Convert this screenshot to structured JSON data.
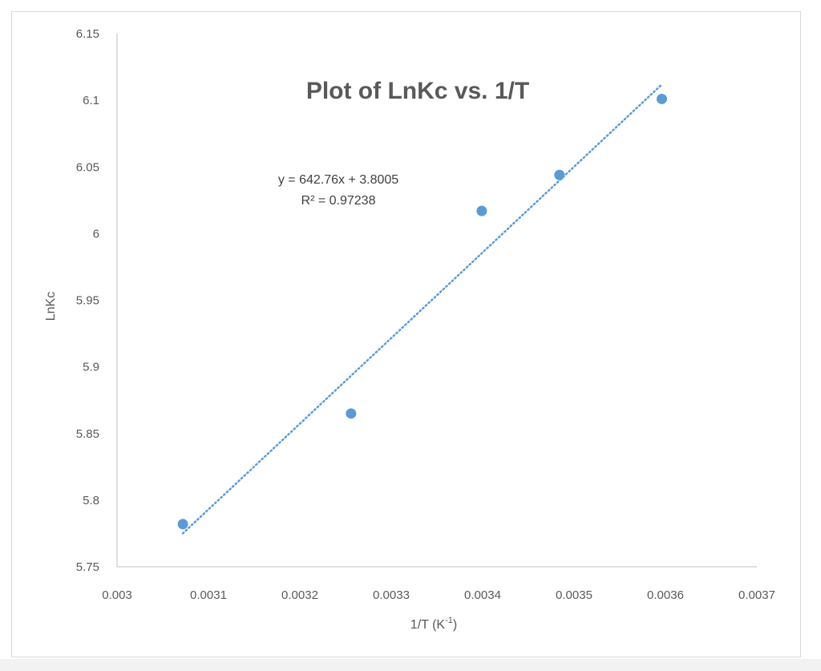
{
  "chart_data": {
    "type": "scatter",
    "title": "Plot of LnKc vs. 1/T",
    "xlabel": "1/T (K",
    "xlabel_sup": "-1",
    "xlabel_close": ")",
    "ylabel": "LnKc",
    "xlim": [
      0.003,
      0.0037
    ],
    "ylim": [
      5.75,
      6.15
    ],
    "x_ticks": [
      "0.003",
      "0.0031",
      "0.0032",
      "0.0033",
      "0.0034",
      "0.0035",
      "0.0036",
      "0.0037"
    ],
    "y_ticks": [
      "5.75",
      "5.8",
      "5.85",
      "5.9",
      "5.95",
      "6",
      "6.05",
      "6.1",
      "6.15"
    ],
    "grid": false,
    "legend": "none",
    "series": [
      {
        "points": [
          {
            "x": 0.003072,
            "y": 5.782
          },
          {
            "x": 0.003256,
            "y": 5.865
          },
          {
            "x": 0.003399,
            "y": 6.017
          },
          {
            "x": 0.003484,
            "y": 6.044
          },
          {
            "x": 0.003596,
            "y": 6.101
          }
        ],
        "color": "#5b9bd5"
      }
    ],
    "trendline": {
      "type": "linear",
      "slope": 642.76,
      "intercept": 3.8005,
      "x_range": [
        0.003072,
        0.003596
      ],
      "color": "#5b9bd5",
      "style": "dotted",
      "equation_label": "y = 642.76x + 3.8005",
      "r2_label": "R² = 0.97238"
    }
  }
}
